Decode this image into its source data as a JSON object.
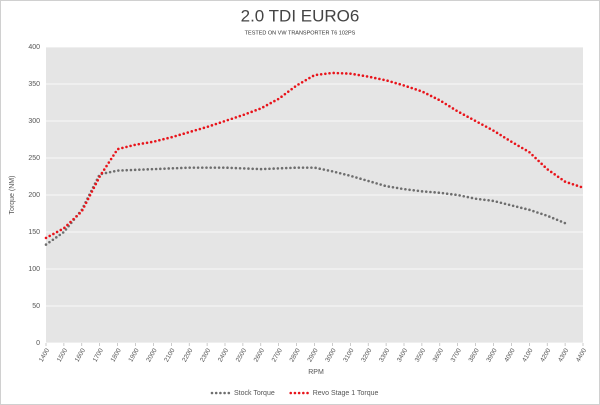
{
  "chart_data": {
    "type": "line",
    "title": "2.0 TDI EURO6",
    "subtitle": "TESTED ON VW TRANSPORTER T6 102PS",
    "x_label": "RPM",
    "y_label": "Torque (NM)",
    "x": [
      1400,
      1500,
      1600,
      1700,
      1800,
      1900,
      2000,
      2100,
      2200,
      2300,
      2400,
      2500,
      2600,
      2700,
      2800,
      2900,
      3000,
      3100,
      3200,
      3300,
      3400,
      3500,
      3600,
      3700,
      3800,
      3900,
      4000,
      4100,
      4200,
      4300,
      4400
    ],
    "xlim": [
      1400,
      4400
    ],
    "xticks": [
      1400,
      1500,
      1600,
      1700,
      1800,
      1900,
      2000,
      2100,
      2200,
      2300,
      2400,
      2500,
      2600,
      2700,
      2800,
      2900,
      3000,
      3100,
      3200,
      3300,
      3400,
      3500,
      3600,
      3700,
      3800,
      3900,
      4000,
      4100,
      4200,
      4300,
      4400
    ],
    "ylim": [
      0,
      400
    ],
    "yticks": [
      0,
      50,
      100,
      150,
      200,
      250,
      300,
      350,
      400
    ],
    "grid": true,
    "series": [
      {
        "name": "Stock Torque",
        "color": "#6e6e6e",
        "values": [
          133,
          150,
          180,
          228,
          233,
          234,
          235,
          236,
          237,
          237,
          237,
          236,
          235,
          236,
          237,
          237,
          232,
          226,
          219,
          212,
          208,
          205,
          203,
          200,
          195,
          192,
          186,
          180,
          172,
          162,
          null
        ]
      },
      {
        "name": "Revo Stage 1 Torque",
        "color": "#e8141b",
        "values": [
          142,
          155,
          178,
          225,
          262,
          268,
          272,
          278,
          285,
          292,
          300,
          308,
          317,
          330,
          348,
          362,
          365,
          364,
          360,
          355,
          348,
          340,
          328,
          313,
          300,
          287,
          272,
          258,
          235,
          218,
          210
        ]
      }
    ]
  }
}
